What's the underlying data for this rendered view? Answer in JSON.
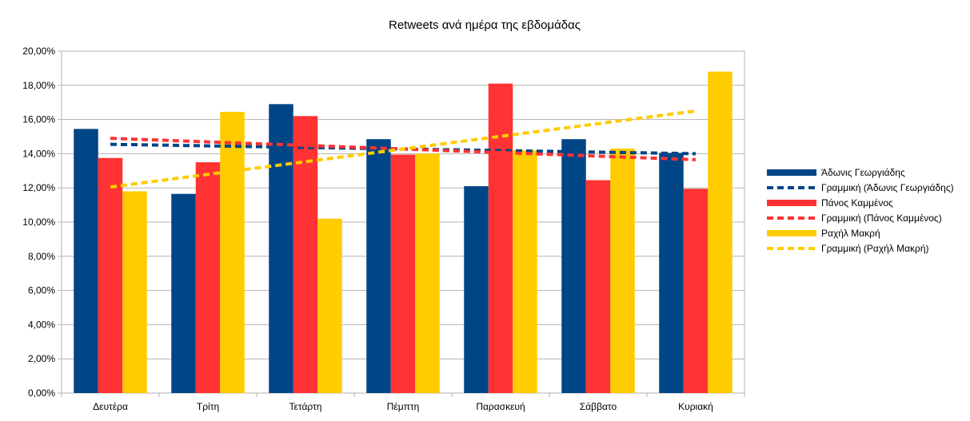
{
  "chart_data": {
    "type": "bar",
    "title": "Retweets ανά ημέρα της εβδομάδας",
    "xlabel": "",
    "ylabel": "",
    "categories": [
      "Δευτέρα",
      "Τρίτη",
      "Τετάρτη",
      "Πέμπτη",
      "Παρασκευή",
      "Σάββατο",
      "Κυριακή"
    ],
    "ylim": [
      0,
      20
    ],
    "yticks": [
      "0,00%",
      "2,00%",
      "4,00%",
      "6,00%",
      "8,00%",
      "10,00%",
      "12,00%",
      "14,00%",
      "16,00%",
      "18,00%",
      "20,00%"
    ],
    "value_unit": "percent",
    "grid": true,
    "legend_position": "right",
    "series": [
      {
        "name": "Άδωνις Γεωργιάδης",
        "color": "#004586",
        "values": [
          15.45,
          11.65,
          16.9,
          14.85,
          12.1,
          14.85,
          14.05
        ]
      },
      {
        "name": "Πάνος Καμμένος",
        "color": "#ff3333",
        "values": [
          13.75,
          13.5,
          16.2,
          13.95,
          18.1,
          12.45,
          11.95
        ]
      },
      {
        "name": "Ραχήλ Μακρή",
        "color": "#ffcc00",
        "values": [
          11.8,
          16.45,
          10.2,
          14.0,
          14.2,
          14.3,
          18.8
        ]
      }
    ],
    "trendlines": [
      {
        "name": "Γραμμική (Άδωνις Γεωργιάδης)",
        "color": "#004586",
        "start": 14.55,
        "end": 14.0
      },
      {
        "name": "Γραμμική (Πάνος Καμμένος)",
        "color": "#ff3333",
        "start": 14.9,
        "end": 13.65
      },
      {
        "name": "Γραμμική (Ραχήλ Μακρή)",
        "color": "#ffcc00",
        "start": 12.05,
        "end": 16.5
      }
    ]
  }
}
